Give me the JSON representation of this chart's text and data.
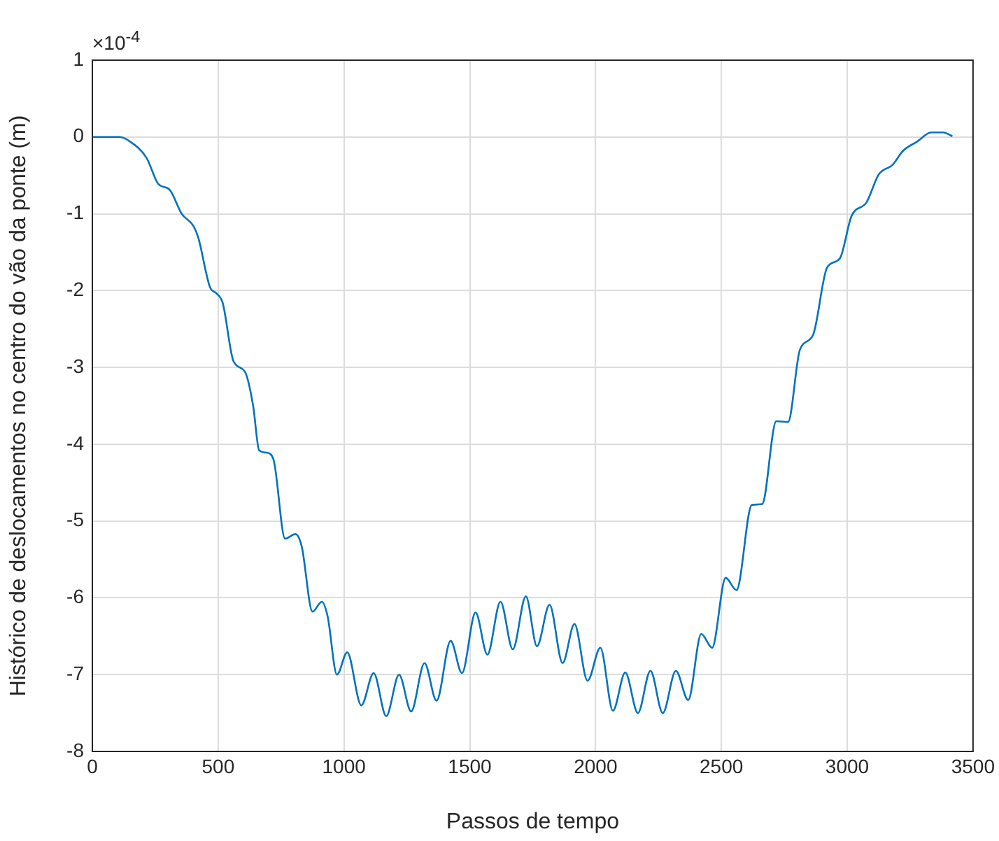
{
  "chart_data": {
    "type": "line",
    "xlabel": "Passos de tempo",
    "ylabel": "Histórico de deslocamentos no centro do vão da ponte (m)",
    "annotations": [
      "×10$^{-4}$"
    ],
    "series": [
      {
        "color": "#0072bd",
        "x": [
          0,
          108,
          150,
          215,
          262,
          308,
          355,
          402,
          421,
          467,
          495,
          518,
          561,
          607,
          639,
          663,
          692,
          720,
          766,
          807,
          832,
          875,
          912,
          935,
          972,
          1013,
          1069,
          1118,
          1168,
          1219,
          1267,
          1320,
          1368,
          1424,
          1469,
          1523,
          1570,
          1622,
          1671,
          1723,
          1767,
          1817,
          1869,
          1916,
          1968,
          2019,
          2069,
          2118,
          2168,
          2218,
          2267,
          2319,
          2368,
          2420,
          2463,
          2517,
          2560,
          2621,
          2662,
          2718,
          2765,
          2812,
          2864,
          2920,
          2971,
          3017,
          3077,
          3125,
          3181,
          3222,
          3278,
          3334,
          3381,
          3418
        ],
        "values": [
          0,
          0,
          -0.06,
          -0.27,
          -0.61,
          -0.69,
          -1.0,
          -1.16,
          -1.31,
          -1.95,
          -2.04,
          -2.16,
          -2.92,
          -3.06,
          -3.5,
          -4.08,
          -4.11,
          -4.2,
          -5.23,
          -5.17,
          -5.33,
          -6.18,
          -6.05,
          -6.24,
          -7.0,
          -6.71,
          -7.4,
          -6.98,
          -7.54,
          -7.0,
          -7.48,
          -6.85,
          -7.34,
          -6.56,
          -6.98,
          -6.19,
          -6.74,
          -6.05,
          -6.67,
          -5.98,
          -6.63,
          -6.09,
          -6.85,
          -6.34,
          -7.08,
          -6.65,
          -7.47,
          -6.97,
          -7.5,
          -6.95,
          -7.5,
          -6.95,
          -7.33,
          -6.47,
          -6.65,
          -5.74,
          -5.9,
          -4.79,
          -4.78,
          -3.7,
          -3.71,
          -2.77,
          -2.58,
          -1.7,
          -1.58,
          -1.03,
          -0.85,
          -0.49,
          -0.36,
          -0.18,
          -0.06,
          0.06,
          0.06,
          0.01
        ]
      }
    ],
    "xlim": [
      0,
      3500
    ],
    "xticks": [
      0,
      500,
      1000,
      1500,
      2000,
      2500,
      3000,
      3500
    ],
    "ylim": [
      -8,
      1
    ],
    "yticks": [
      -8,
      -7,
      -6,
      -5,
      -4,
      -3,
      -2,
      -1,
      0,
      1
    ],
    "grid": true,
    "legend": false,
    "marker": "none",
    "line_style": "solid"
  }
}
